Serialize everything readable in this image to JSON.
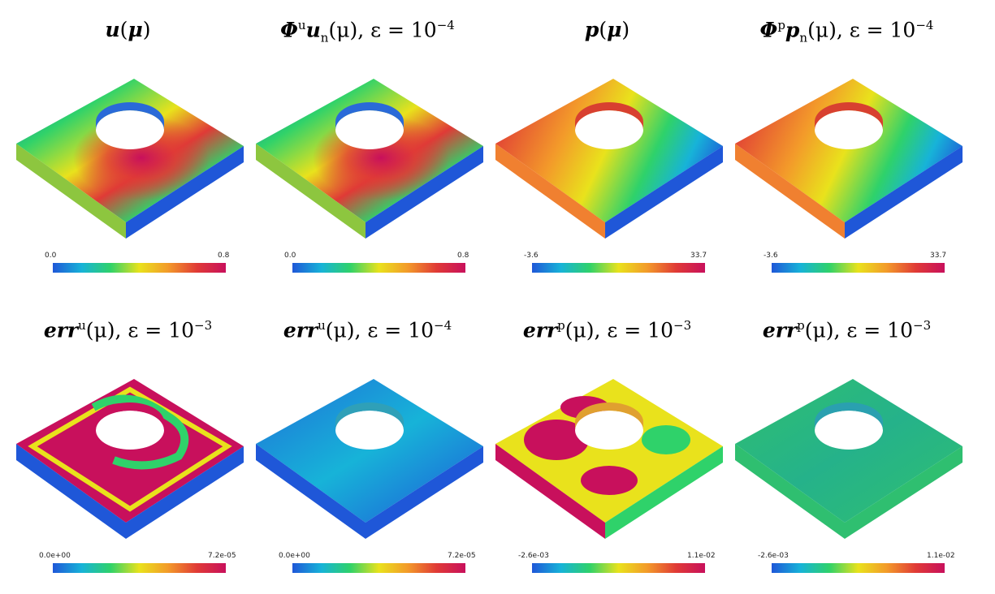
{
  "colormap": [
    "#1f57d8",
    "#17b3d8",
    "#2fd26a",
    "#e9e21c",
    "#f39a2a",
    "#e03a36",
    "#c8105c"
  ],
  "panels": [
    {
      "title_parts": [
        "u",
        "(",
        "μ",
        ")"
      ],
      "cbar": {
        "min": "0.0",
        "max": "0.8"
      }
    },
    {
      "title_parts": [
        "Φ",
        "u",
        "u",
        "n",
        "(μ), ε = 10",
        "−4"
      ],
      "cbar": {
        "min": "0.0",
        "max": "0.8"
      }
    },
    {
      "title_parts": [
        "p",
        "(",
        "μ",
        ")"
      ],
      "cbar": {
        "min": "-3.6",
        "max": "33.7"
      }
    },
    {
      "title_parts": [
        "Φ",
        "p",
        "p",
        "n",
        "(μ), ε = 10",
        "−4"
      ],
      "cbar": {
        "min": "-3.6",
        "max": "33.7"
      }
    },
    {
      "title_parts": [
        "err",
        "u",
        "(μ), ε = 10",
        "−3"
      ],
      "cbar": {
        "min": "0.0e+00",
        "max": "7.2e-05"
      }
    },
    {
      "title_parts": [
        "err",
        "u",
        "(μ), ε = 10",
        "−4"
      ],
      "cbar": {
        "min": "0.0e+00",
        "max": "7.2e-05"
      }
    },
    {
      "title_parts": [
        "err",
        "p",
        "(μ), ε = 10",
        "−3"
      ],
      "cbar": {
        "min": "-2.6e-03",
        "max": "1.1e-02"
      }
    },
    {
      "title_parts": [
        "err",
        "p",
        "(μ), ε = 10",
        "−3"
      ],
      "cbar": {
        "min": "-2.6e-03",
        "max": "1.1e-02"
      }
    }
  ]
}
